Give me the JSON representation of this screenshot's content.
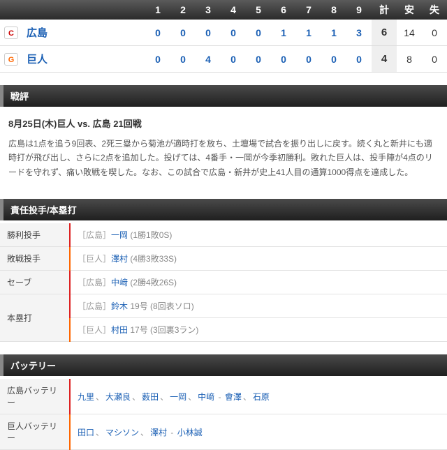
{
  "scoreboard": {
    "headers": [
      "",
      "1",
      "2",
      "3",
      "4",
      "5",
      "6",
      "7",
      "8",
      "9",
      "計",
      "安",
      "失"
    ],
    "teams": [
      {
        "logo_class": "logo-carp",
        "logo_text": "C",
        "name": "広島",
        "innings": [
          "0",
          "0",
          "0",
          "0",
          "0",
          "1",
          "1",
          "1",
          "3"
        ],
        "total": "6",
        "hits": "14",
        "err": "0"
      },
      {
        "logo_class": "logo-giants",
        "logo_text": "G",
        "name": "巨人",
        "innings": [
          "0",
          "0",
          "4",
          "0",
          "0",
          "0",
          "0",
          "0",
          "0"
        ],
        "total": "4",
        "hits": "8",
        "err": "0"
      }
    ]
  },
  "review": {
    "header": "戦評",
    "title": "8月25日(木)巨人 vs. 広島 21回戦",
    "body": "広島は1点を追う9回表、2死三塁から菊池が適時打を放ち、土壇場で試合を振り出しに戻す。続く丸と新井にも適時打が飛び出し、さらに2点を追加した。投げては、4番手・一岡が今季初勝利。敗れた巨人は、投手陣が4点のリードを守れず、痛い敗戦を喫した。なお、この試合で広島・新井が史上41人目の通算1000得点を達成した。"
  },
  "pitchers": {
    "header": "責任投手/本塁打",
    "rows": [
      {
        "label": "勝利投手",
        "team": "広島",
        "name": "一岡",
        "stat": "(1勝1敗0S)",
        "border": "border-red",
        "rowspan": 1
      },
      {
        "label": "敗戦投手",
        "team": "巨人",
        "name": "澤村",
        "stat": "(4勝3敗33S)",
        "border": "border-org",
        "rowspan": 1
      },
      {
        "label": "セーブ",
        "team": "広島",
        "name": "中﨑",
        "stat": "(2勝4敗26S)",
        "border": "border-red",
        "rowspan": 1
      }
    ],
    "hr": {
      "label": "本塁打",
      "rows": [
        {
          "team": "広島",
          "name": "鈴木",
          "stat": "19号 (8回表ソロ)",
          "border": "border-red"
        },
        {
          "team": "巨人",
          "name": "村田",
          "stat": "17号 (3回裏3ラン)",
          "border": "border-org"
        }
      ]
    }
  },
  "battery": {
    "header": "バッテリー",
    "rows": [
      {
        "label": "広島バッテリー",
        "border": "border-red",
        "pitchers": [
          "九里",
          "大瀬良",
          "薮田",
          "一岡",
          "中﨑"
        ],
        "catchers": [
          "會澤",
          "石原"
        ]
      },
      {
        "label": "巨人バッテリー",
        "border": "border-org",
        "pitchers": [
          "田口",
          "マシソン",
          "澤村"
        ],
        "catchers": [
          "小林誠"
        ]
      }
    ]
  }
}
